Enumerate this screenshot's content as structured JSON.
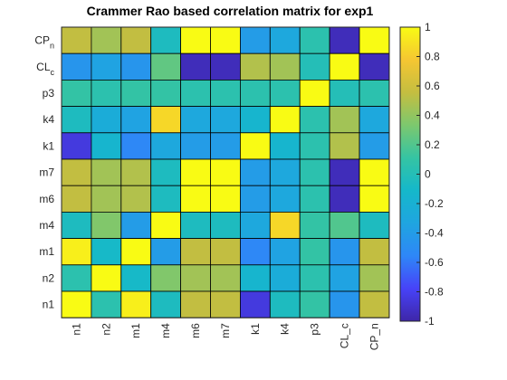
{
  "chart_data": {
    "type": "heatmap",
    "title": "Crammer Rao based correlation matrix for exp1",
    "xlabel": "",
    "ylabel": "",
    "x_categories": [
      "n1",
      "n2",
      "m1",
      "m4",
      "m6",
      "m7",
      "k1",
      "k4",
      "p3",
      "CL_c",
      "CP_n"
    ],
    "y_categories": [
      {
        "base": "CP",
        "sub": "n"
      },
      {
        "base": "CL",
        "sub": "c"
      },
      {
        "base": "p3",
        "sub": ""
      },
      {
        "base": "k4",
        "sub": ""
      },
      {
        "base": "k1",
        "sub": ""
      },
      {
        "base": "m7",
        "sub": ""
      },
      {
        "base": "m6",
        "sub": ""
      },
      {
        "base": "m4",
        "sub": ""
      },
      {
        "base": "m1",
        "sub": ""
      },
      {
        "base": "n2",
        "sub": ""
      },
      {
        "base": "n1",
        "sub": ""
      }
    ],
    "values": [
      [
        0.55,
        0.45,
        0.55,
        -0.05,
        1.0,
        1.0,
        -0.4,
        -0.3,
        0.05,
        -0.95,
        1.0
      ],
      [
        -0.45,
        -0.35,
        -0.45,
        0.25,
        -0.95,
        -0.95,
        0.5,
        0.45,
        0.0,
        1.0,
        -0.95
      ],
      [
        0.1,
        0.05,
        0.1,
        0.1,
        0.05,
        0.05,
        0.05,
        0.05,
        1.0,
        0.0,
        0.05
      ],
      [
        -0.05,
        -0.25,
        -0.35,
        0.85,
        -0.3,
        -0.3,
        -0.15,
        1.0,
        0.05,
        0.45,
        -0.3
      ],
      [
        -0.85,
        -0.15,
        -0.55,
        -0.3,
        -0.4,
        -0.4,
        1.0,
        -0.15,
        0.05,
        0.5,
        -0.4
      ],
      [
        0.55,
        0.45,
        0.5,
        -0.05,
        1.0,
        1.0,
        -0.4,
        -0.3,
        0.05,
        -0.95,
        1.0
      ],
      [
        0.55,
        0.45,
        0.5,
        -0.05,
        1.0,
        1.0,
        -0.4,
        -0.3,
        0.05,
        -0.95,
        1.0
      ],
      [
        -0.05,
        0.35,
        -0.4,
        1.0,
        -0.05,
        -0.05,
        -0.3,
        0.85,
        0.1,
        0.2,
        -0.05
      ],
      [
        0.95,
        -0.1,
        1.0,
        -0.4,
        0.55,
        0.55,
        -0.55,
        -0.35,
        0.1,
        -0.45,
        0.55
      ],
      [
        0.05,
        1.0,
        -0.1,
        0.35,
        0.45,
        0.45,
        -0.15,
        -0.25,
        0.05,
        -0.35,
        0.45
      ],
      [
        1.0,
        0.05,
        0.95,
        -0.05,
        0.55,
        0.55,
        -0.85,
        -0.05,
        0.1,
        -0.45,
        0.55
      ]
    ],
    "colorbar": {
      "range": [
        -1,
        1
      ],
      "ticks": [
        "1",
        "0.8",
        "0.6",
        "0.4",
        "0.2",
        "0",
        "-0.2",
        "-0.4",
        "-0.6",
        "-0.8",
        "-1"
      ],
      "colormap": [
        "#3e26a8",
        "#4743f8",
        "#2e87f7",
        "#1fa5e0",
        "#15b8ca",
        "#35c4a3",
        "#7cc86e",
        "#c4be40",
        "#f5c632",
        "#f9fb14"
      ]
    },
    "grid": true,
    "legend": "colorbar-right"
  }
}
